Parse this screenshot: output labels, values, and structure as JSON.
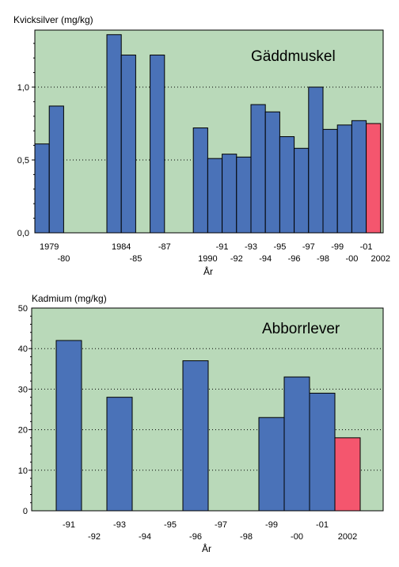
{
  "chart_data": [
    {
      "type": "bar",
      "ylabel": "Kvicksilver (mg/kg)",
      "inset_label": "Gäddmuskel",
      "xlabel": "År",
      "ylim": [
        0,
        1.38
      ],
      "grid": "dotted horizontal at 0.5 and 1.0",
      "plot_background": "#b9d9b9",
      "bar_color": "#4a72b8",
      "highlight_color": "#f4566e",
      "yticks": [
        "0,0",
        "0,5",
        "1,0"
      ],
      "x_tick_labels": [
        "1979",
        "-80",
        "1984",
        "-85",
        "-87",
        "1990",
        "-91",
        "-92",
        "-93",
        "-94",
        "-95",
        "-96",
        "-97",
        "-98",
        "-99",
        "-00",
        "-01",
        "2002"
      ],
      "bars": [
        {
          "year": 1979,
          "value": 0.61
        },
        {
          "year": 1980,
          "value": 0.87
        },
        {
          "year": 1984,
          "value": 1.36
        },
        {
          "year": 1985,
          "value": 1.22
        },
        {
          "year": 1987,
          "value": 1.22
        },
        {
          "year": 1990,
          "value": 0.72
        },
        {
          "year": 1991,
          "value": 0.51
        },
        {
          "year": 1992,
          "value": 0.54
        },
        {
          "year": 1993,
          "value": 0.52
        },
        {
          "year": 1994,
          "value": 0.88
        },
        {
          "year": 1995,
          "value": 0.83
        },
        {
          "year": 1996,
          "value": 0.66
        },
        {
          "year": 1997,
          "value": 0.58
        },
        {
          "year": 1998,
          "value": 1.0
        },
        {
          "year": 1999,
          "value": 0.71
        },
        {
          "year": 2000,
          "value": 0.74
        },
        {
          "year": 2001,
          "value": 0.77
        },
        {
          "year": 2002,
          "value": 0.75,
          "highlight": true
        }
      ]
    },
    {
      "type": "bar",
      "ylabel": "Kadmium (mg/kg)",
      "inset_label": "Abborrlever",
      "xlabel": "År",
      "ylim": [
        0,
        50
      ],
      "grid": "dotted horizontal at 10, 20, 30, 40",
      "plot_background": "#b9d9b9",
      "bar_color": "#4a72b8",
      "highlight_color": "#f4566e",
      "yticks": [
        "0",
        "10",
        "20",
        "30",
        "40",
        "50"
      ],
      "x_tick_labels": [
        "-91",
        "-92",
        "-93",
        "-94",
        "-95",
        "-96",
        "-97",
        "-98",
        "-99",
        "-00",
        "-01",
        "2002"
      ],
      "bars": [
        {
          "year": 1991,
          "value": 42
        },
        {
          "year": 1993,
          "value": 28
        },
        {
          "year": 1996,
          "value": 37
        },
        {
          "year": 1999,
          "value": 23
        },
        {
          "year": 2000,
          "value": 33
        },
        {
          "year": 2001,
          "value": 29
        },
        {
          "year": 2002,
          "value": 18,
          "highlight": true
        }
      ]
    }
  ]
}
